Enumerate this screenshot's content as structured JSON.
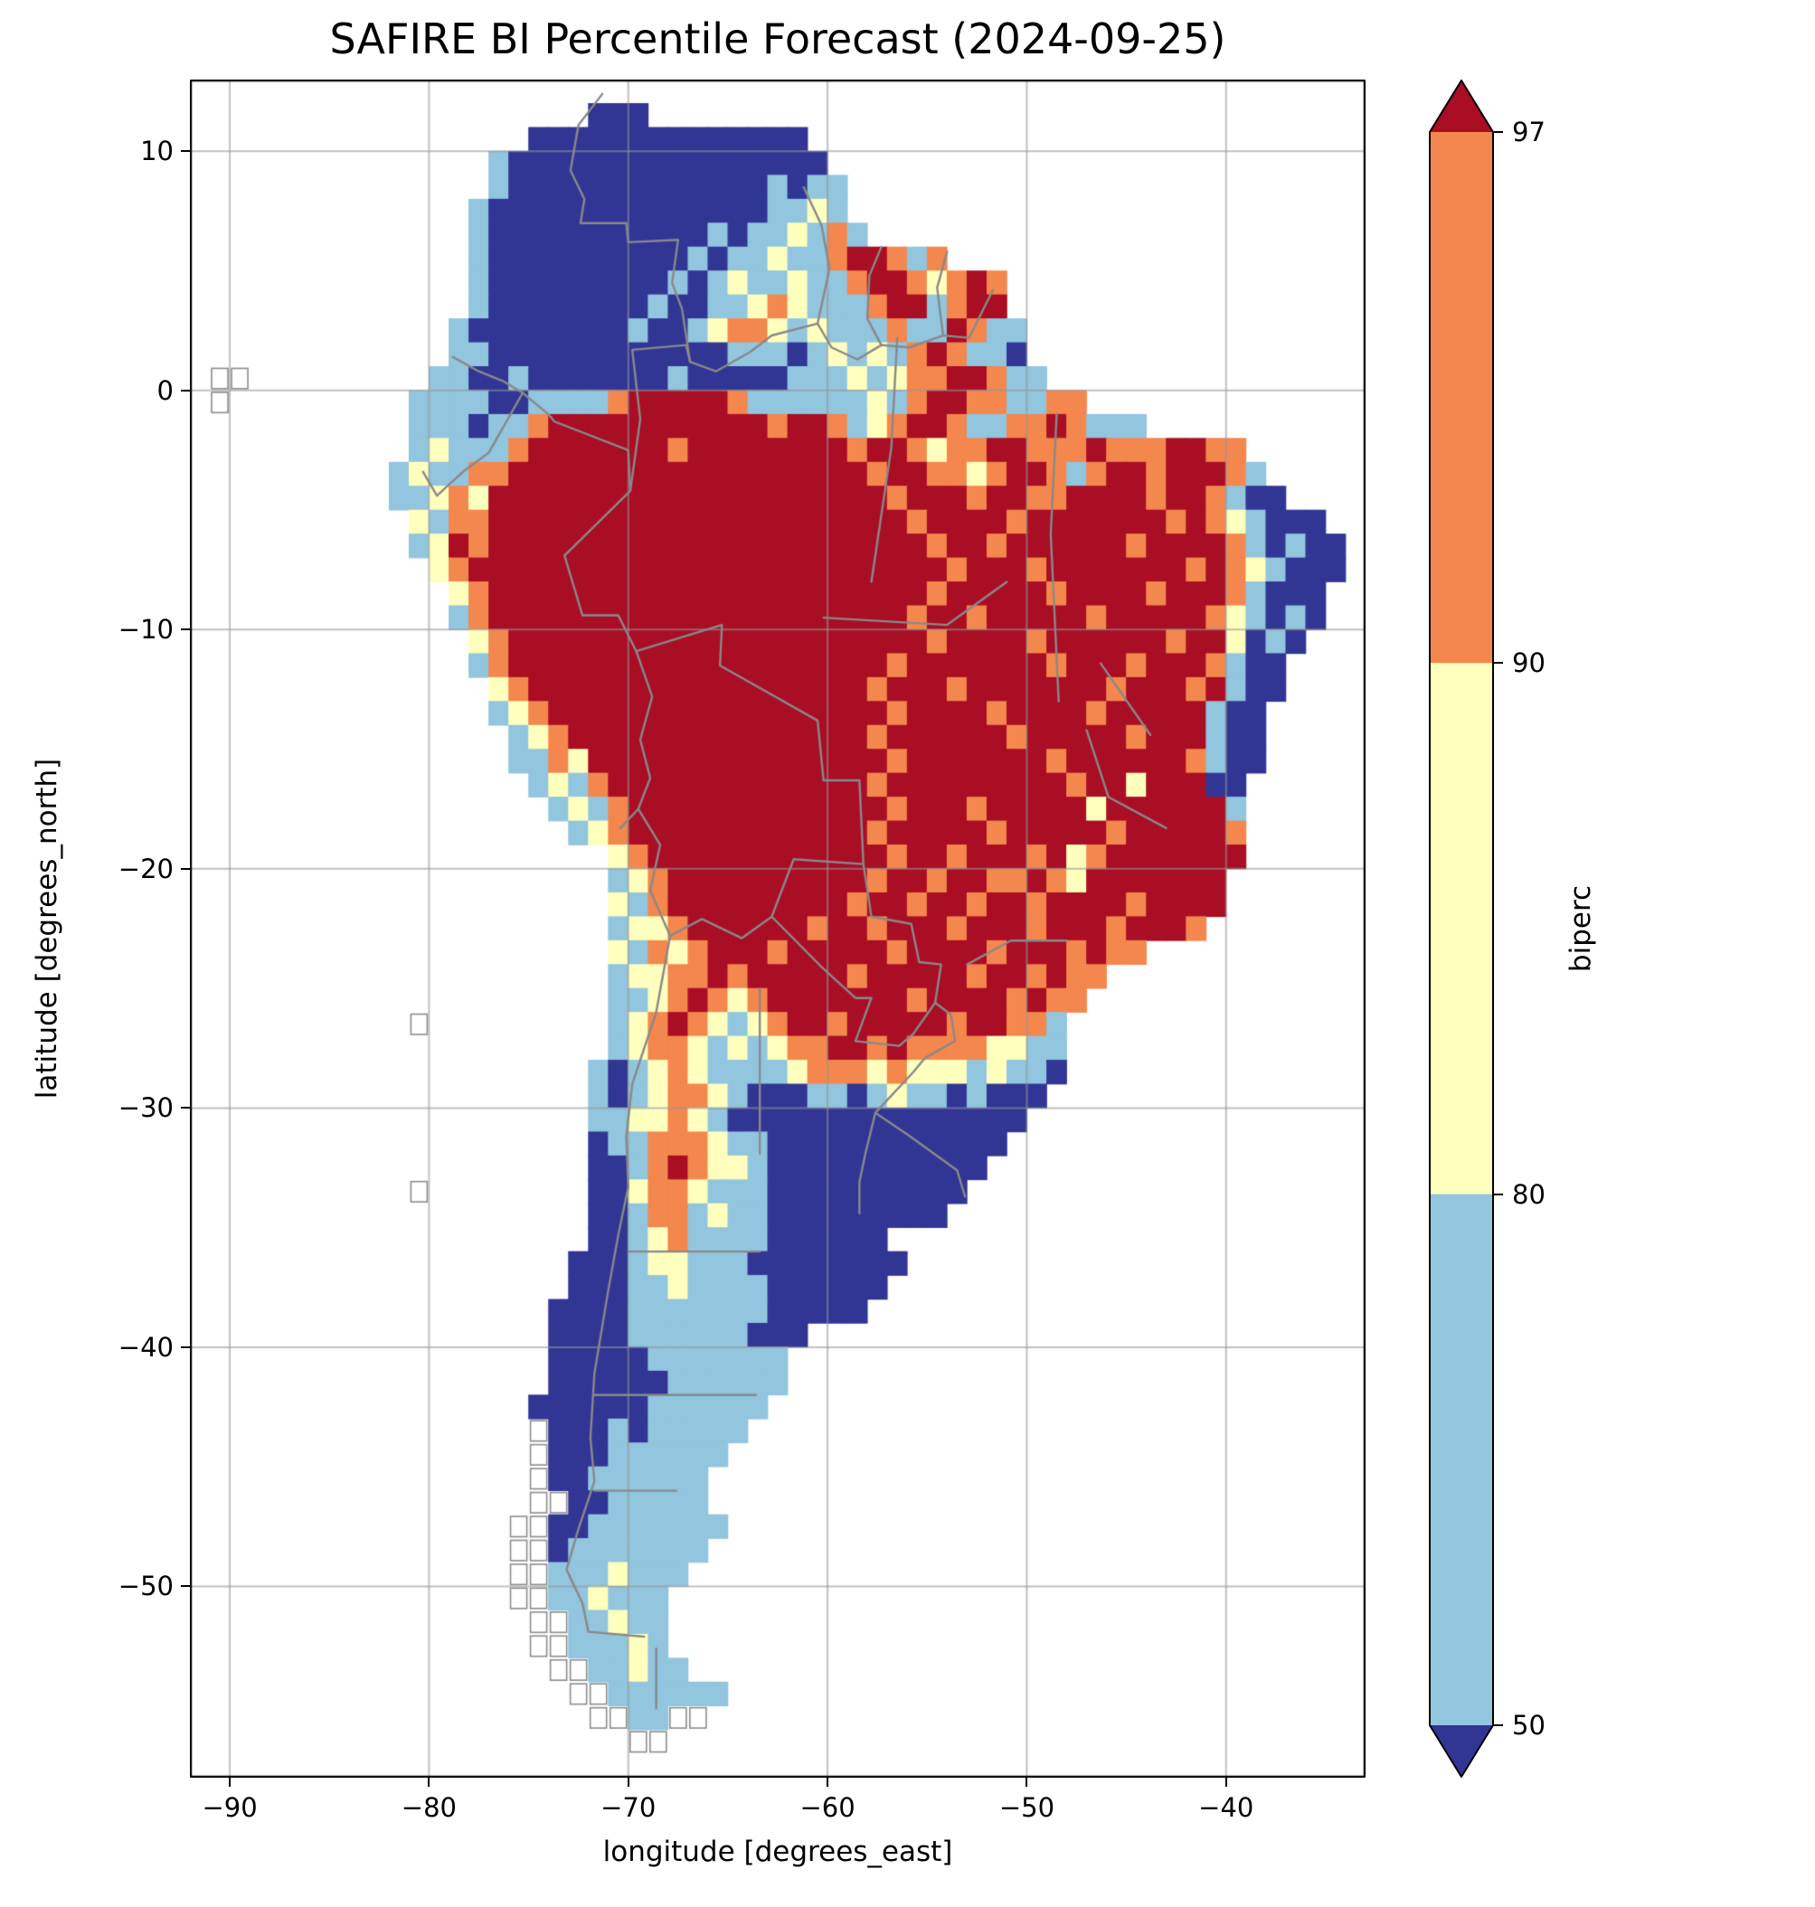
{
  "title": "SAFIRE BI Percentile Forecast (2024-09-25)",
  "forecast_date": "2024-09-25",
  "axes": {
    "xlabel": "longitude [degrees_east]",
    "ylabel": "latitude [degrees_north]",
    "xlim": [
      -92,
      -33
    ],
    "ylim": [
      -58,
      13
    ],
    "grid": true,
    "xticks": [
      {
        "value": -90,
        "label": "−90"
      },
      {
        "value": -80,
        "label": "−80"
      },
      {
        "value": -70,
        "label": "−70"
      },
      {
        "value": -60,
        "label": "−60"
      },
      {
        "value": -50,
        "label": "−50"
      },
      {
        "value": -40,
        "label": "−40"
      }
    ],
    "yticks": [
      {
        "value": 10,
        "label": "10"
      },
      {
        "value": 0,
        "label": "0"
      },
      {
        "value": -10,
        "label": "−10"
      },
      {
        "value": -20,
        "label": "−20"
      },
      {
        "value": -30,
        "label": "−30"
      },
      {
        "value": -40,
        "label": "−40"
      },
      {
        "value": -50,
        "label": "−50"
      }
    ]
  },
  "colorbar": {
    "label": "biperc",
    "tick_labels": [
      "97",
      "90",
      "80",
      "50"
    ],
    "levels": [
      50,
      80,
      90,
      97
    ],
    "spacing": "uniform",
    "extend_over_color": "#a90e24",
    "extend_under_color": "#313695",
    "segment_colors_top_to_bottom": {
      "seg_90_97": "#f4874d",
      "seg_80_90": "#ffffbe",
      "seg_50_80": "#92c5de"
    },
    "class_colors": {
      "1": "#313695",
      "2": "#92c5de",
      "3": "#ffffbe",
      "4": "#f4874d",
      "5": "#a90e24"
    }
  },
  "chart_data": {
    "type": "heatmap",
    "title": "SAFIRE BI Percentile Forecast (2024-09-25)",
    "xlabel": "longitude [degrees_east]",
    "ylabel": "latitude [degrees_north]",
    "colorbar_label": "biperc",
    "xlim": [
      -92,
      -33
    ],
    "ylim": [
      -58,
      13
    ],
    "levels": [
      50,
      80,
      90,
      97
    ],
    "cell_size_deg": 1,
    "origin": {
      "lon_west": -92,
      "lat_top": 13
    },
    "classes": {
      ".": "ocean / outside data",
      "1": "biperc < 50 (dark blue)",
      "2": "biperc 50-80 (light blue)",
      "3": "biperc 80-90 (pale yellow)",
      "4": "biperc 90-97 (orange)",
      "5": "biperc > 97 (dark red)",
      "g": "coastline outline only (no data)"
    },
    "rows": [
      "",
      "....................111",
      ".................11111111111111",
      "...............21111111111111111",
      "...............211111111111112122",
      "..............2111111111111112232",
      "..............21111111111121223242",
      "..............211111111112122322455424",
      "..............211111111121232232245543454",
      "..............211111111211223432224552455",
      ".............21111111121123443232224225422",
      ".............22111111111111222123232454221",
      ".gg.........2211211111112111112223234455422",
      ".g.........2222112222455555422222232455442244",
      "...........2221224555555555554554234554224454222",
      "...........232224555555545555555545543445544454445544",
      "..........23224455555555555555555545544345542455455542",
      "..........223435555555555555555555545554554455554554211",
      "...........3244555555555555555555555455554555555545432111",
      "...........23545555555555555555555555455455555545555421211",
      "............3455555555555555555555555545554555555545432111",
      ".............34555555555555555555555545555545555455542111",
      ".............24555555555555555555555455455555455555432121",
      "..............345555555555555555555554555545555554553121",
      "..............24555555555555555555545555555455545554211",
      "...............3455555555555555555455545555555455545211",
      "...............234555555555555555554555545555455555211",
      "................23455555555555555545555554555554555211",
      "................22435555555555555554555555545555554211",
      ".................232455555555555554555555555455355511",
      "..................23245555555555555455545555535555552",
      "...................2345555555555554555554555554555554",
      ".....................34555555555555455455545345555555",
      ".....................2345555555555455455445435555555",
      ".....................3245555555554554554554555545555",
      ".....................233455555545545554555455545554",
      ".....................324345554555554555545554544",
      ".....................2334454555554555554554544",
      ".....................223454345555555455554544",
      "...........g.........23454323455455555455442",
      ".....................23443232344554544443322",
      "....................212343222234443433323221",
      "....................21234432111221232212111",
      "....................2233432111111111111111",
      "....................122444322111111111111",
      "....................11245433211111111111",
      "...........g........1134432221111111111",
      "....................112442322111111111",
      "....................112342222111111",
      "...................11123322211111111",
      "...................1112232222111111",
      "..................1111222222211111",
      "..................1111222222111",
      "..................111112222222",
      "..................111111222222",
      ".................111111222222",
      ".................g1112122222",
      ".................g111222222",
      ".................g11222222",
      ".................gg1122222",
      "................gg112222222",
      "................gg12222222",
      "................gg2223222",
      "................gg223222",
      ".................gg22322",
      ".................gg22232",
      "..................gg22322",
      "...................gg222222",
      "....................gg22gg",
      "......................gg",
      ""
    ],
    "borders": [
      {
        "name": "colombia-venezuela",
        "points": [
          [
            -71.3,
            12.4
          ],
          [
            -72.5,
            11.1
          ],
          [
            -72.9,
            9.2
          ],
          [
            -72.2,
            8.0
          ],
          [
            -72.4,
            7.0
          ],
          [
            -70.1,
            7.0
          ],
          [
            -70.0,
            6.2
          ],
          [
            -67.5,
            6.3
          ],
          [
            -67.8,
            4.5
          ],
          [
            -67.3,
            3.4
          ],
          [
            -66.9,
            1.2
          ]
        ]
      },
      {
        "name": "colombia-ecuador",
        "points": [
          [
            -78.8,
            1.4
          ],
          [
            -77.5,
            0.8
          ],
          [
            -76.3,
            0.4
          ],
          [
            -75.3,
            -0.1
          ]
        ]
      },
      {
        "name": "colombia-peru",
        "points": [
          [
            -75.3,
            -0.1
          ],
          [
            -74.0,
            -1.0
          ],
          [
            -73.7,
            -1.3
          ],
          [
            -70.0,
            -2.5
          ],
          [
            -69.9,
            -4.2
          ]
        ]
      },
      {
        "name": "colombia-brazil",
        "points": [
          [
            -66.9,
            1.2
          ],
          [
            -67.1,
            1.9
          ],
          [
            -69.8,
            1.7
          ],
          [
            -69.4,
            -1.2
          ],
          [
            -69.9,
            -4.2
          ]
        ]
      },
      {
        "name": "ecuador-peru",
        "points": [
          [
            -80.3,
            -3.4
          ],
          [
            -79.6,
            -4.4
          ],
          [
            -78.3,
            -3.4
          ],
          [
            -77.0,
            -2.6
          ],
          [
            -75.3,
            -0.1
          ]
        ]
      },
      {
        "name": "venezuela-brazil-guyana",
        "points": [
          [
            -66.9,
            1.2
          ],
          [
            -65.6,
            0.8
          ],
          [
            -63.9,
            1.6
          ],
          [
            -62.8,
            2.3
          ],
          [
            -60.5,
            2.8
          ],
          [
            -59.9,
            5.1
          ],
          [
            -60.3,
            6.9
          ],
          [
            -61.2,
            8.5
          ]
        ]
      },
      {
        "name": "brazil-north-border",
        "points": [
          [
            -60.5,
            2.8
          ],
          [
            -59.8,
            1.8
          ],
          [
            -58.5,
            1.3
          ],
          [
            -57.3,
            1.9
          ],
          [
            -55.9,
            1.8
          ],
          [
            -54.2,
            2.3
          ],
          [
            -52.9,
            2.2
          ],
          [
            -51.7,
            4.2
          ]
        ]
      },
      {
        "name": "guyana-suriname",
        "points": [
          [
            -57.3,
            6.0
          ],
          [
            -57.9,
            4.8
          ],
          [
            -58.0,
            3.0
          ],
          [
            -57.3,
            1.9
          ]
        ]
      },
      {
        "name": "suriname-french-guiana",
        "points": [
          [
            -54.0,
            5.8
          ],
          [
            -54.5,
            4.3
          ],
          [
            -54.2,
            2.3
          ]
        ]
      },
      {
        "name": "peru-brazil",
        "points": [
          [
            -69.9,
            -4.2
          ],
          [
            -73.2,
            -6.9
          ],
          [
            -72.3,
            -9.4
          ],
          [
            -70.5,
            -9.4
          ],
          [
            -69.6,
            -10.9
          ]
        ]
      },
      {
        "name": "peru-bolivia",
        "points": [
          [
            -69.6,
            -10.9
          ],
          [
            -68.8,
            -12.8
          ],
          [
            -69.4,
            -14.6
          ],
          [
            -68.9,
            -16.2
          ],
          [
            -69.5,
            -17.5
          ]
        ]
      },
      {
        "name": "chile-peru-bolivia",
        "points": [
          [
            -70.4,
            -18.3
          ],
          [
            -69.5,
            -17.5
          ],
          [
            -68.4,
            -19.0
          ],
          [
            -68.9,
            -20.9
          ],
          [
            -67.9,
            -22.8
          ]
        ]
      },
      {
        "name": "bolivia-brazil",
        "points": [
          [
            -69.6,
            -10.9
          ],
          [
            -65.3,
            -9.8
          ],
          [
            -65.4,
            -11.5
          ],
          [
            -60.5,
            -13.8
          ],
          [
            -60.2,
            -16.3
          ],
          [
            -58.4,
            -16.3
          ],
          [
            -58.2,
            -19.8
          ]
        ]
      },
      {
        "name": "bolivia-argentina-paraguay",
        "points": [
          [
            -67.9,
            -22.8
          ],
          [
            -66.3,
            -22.1
          ],
          [
            -64.3,
            -22.9
          ],
          [
            -62.8,
            -22.0
          ],
          [
            -61.7,
            -19.6
          ],
          [
            -58.2,
            -19.8
          ]
        ]
      },
      {
        "name": "paraguay-brazil",
        "points": [
          [
            -58.2,
            -19.8
          ],
          [
            -57.8,
            -22.0
          ],
          [
            -55.8,
            -22.3
          ],
          [
            -55.4,
            -23.9
          ],
          [
            -54.3,
            -24.0
          ],
          [
            -54.6,
            -25.6
          ]
        ]
      },
      {
        "name": "paraguay-argentina",
        "points": [
          [
            -62.8,
            -22.0
          ],
          [
            -60.3,
            -24.1
          ],
          [
            -58.6,
            -25.4
          ],
          [
            -57.8,
            -25.4
          ],
          [
            -58.6,
            -27.2
          ],
          [
            -56.4,
            -27.4
          ],
          [
            -55.7,
            -26.9
          ],
          [
            -54.6,
            -25.6
          ]
        ]
      },
      {
        "name": "argentina-brazil-uruguay",
        "points": [
          [
            -54.6,
            -25.6
          ],
          [
            -53.8,
            -26.1
          ],
          [
            -53.6,
            -27.2
          ],
          [
            -55.1,
            -27.9
          ],
          [
            -55.7,
            -28.5
          ],
          [
            -57.6,
            -30.2
          ],
          [
            -58.1,
            -31.9
          ],
          [
            -58.4,
            -33.1
          ],
          [
            -58.4,
            -34.4
          ]
        ]
      },
      {
        "name": "brazil-uruguay",
        "points": [
          [
            -57.6,
            -30.2
          ],
          [
            -56.0,
            -31.1
          ],
          [
            -53.5,
            -32.6
          ],
          [
            -53.1,
            -33.7
          ]
        ]
      },
      {
        "name": "argentina-chile",
        "points": [
          [
            -67.9,
            -22.8
          ],
          [
            -68.6,
            -26.0
          ],
          [
            -69.8,
            -29.0
          ],
          [
            -70.1,
            -31.2
          ],
          [
            -70.0,
            -33.3
          ],
          [
            -70.5,
            -35.3
          ],
          [
            -71.0,
            -37.6
          ],
          [
            -71.4,
            -39.6
          ],
          [
            -71.7,
            -41.1
          ],
          [
            -71.9,
            -43.8
          ],
          [
            -71.7,
            -45.6
          ],
          [
            -72.5,
            -47.6
          ],
          [
            -73.1,
            -49.3
          ],
          [
            -72.3,
            -50.7
          ],
          [
            -72.0,
            -51.9
          ],
          [
            -69.2,
            -52.1
          ]
        ]
      },
      {
        "name": "tierra-del-fuego-border",
        "points": [
          [
            -68.6,
            -52.6
          ],
          [
            -68.6,
            -55.1
          ]
        ]
      },
      {
        "name": "brazil-state-amazonas-para",
        "points": [
          [
            -56.5,
            2.2
          ],
          [
            -56.8,
            -2.4
          ],
          [
            -57.8,
            -8.0
          ]
        ]
      },
      {
        "name": "brazil-state-para-maranhao",
        "points": [
          [
            -48.5,
            -1.0
          ],
          [
            -48.8,
            -6.0
          ],
          [
            -48.4,
            -13.0
          ]
        ]
      },
      {
        "name": "brazil-state-mato-grosso",
        "points": [
          [
            -60.2,
            -9.5
          ],
          [
            -54.0,
            -9.8
          ],
          [
            -51.0,
            -8.0
          ]
        ]
      },
      {
        "name": "brazil-state-goias-minas",
        "points": [
          [
            -47.0,
            -14.2
          ],
          [
            -45.9,
            -17.0
          ],
          [
            -43.0,
            -18.3
          ]
        ]
      },
      {
        "name": "brazil-state-bahia",
        "points": [
          [
            -46.3,
            -11.4
          ],
          [
            -43.8,
            -14.4
          ]
        ]
      },
      {
        "name": "brazil-state-sp-parana",
        "points": [
          [
            -48.0,
            -23.0
          ],
          [
            -50.8,
            -23.0
          ],
          [
            -53.0,
            -24.0
          ]
        ]
      },
      {
        "name": "argentina-prov-chubut-n",
        "points": [
          [
            -71.7,
            -42.0
          ],
          [
            -63.6,
            -42.0
          ]
        ]
      },
      {
        "name": "argentina-prov-chubut-s",
        "points": [
          [
            -71.7,
            -46.0
          ],
          [
            -67.6,
            -46.0
          ]
        ]
      },
      {
        "name": "argentina-prov-mendoza",
        "points": [
          [
            -70.0,
            -36.0
          ],
          [
            -63.4,
            -36.0
          ]
        ]
      },
      {
        "name": "argentina-prov-chaco",
        "points": [
          [
            -63.4,
            -25.0
          ],
          [
            -63.4,
            -31.9
          ]
        ]
      }
    ]
  }
}
